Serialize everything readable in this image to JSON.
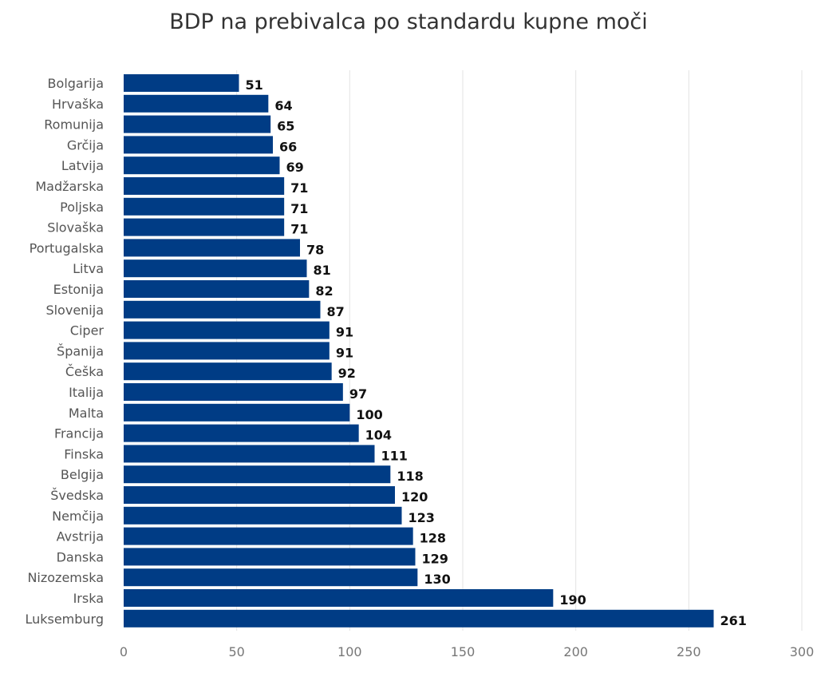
{
  "chart_data": {
    "type": "bar",
    "orientation": "horizontal",
    "title": "BDP na prebivalca po standardu kupne moči",
    "categories": [
      "Bolgarija",
      "Hrvaška",
      "Romunija",
      "Grčija",
      "Latvija",
      "Madžarska",
      "Poljska",
      "Slovaška",
      "Portugalska",
      "Litva",
      "Estonija",
      "Slovenija",
      "Ciper",
      "Španija",
      "Češka",
      "Italija",
      "Malta",
      "Francija",
      "Finska",
      "Belgija",
      "Švedska",
      "Nemčija",
      "Avstrija",
      "Danska",
      "Nizozemska",
      "Irska",
      "Luksemburg"
    ],
    "values": [
      51,
      64,
      65,
      66,
      69,
      71,
      71,
      71,
      78,
      81,
      82,
      87,
      91,
      91,
      92,
      97,
      100,
      104,
      111,
      118,
      120,
      123,
      128,
      129,
      130,
      190,
      261
    ],
    "xlim": [
      0,
      300
    ],
    "xticks": [
      0,
      50,
      100,
      150,
      200,
      250,
      300
    ],
    "grid": true,
    "data_labels": true,
    "legend": "none",
    "bar_color": "#003c85",
    "grid_color": "#e3e3e3"
  }
}
